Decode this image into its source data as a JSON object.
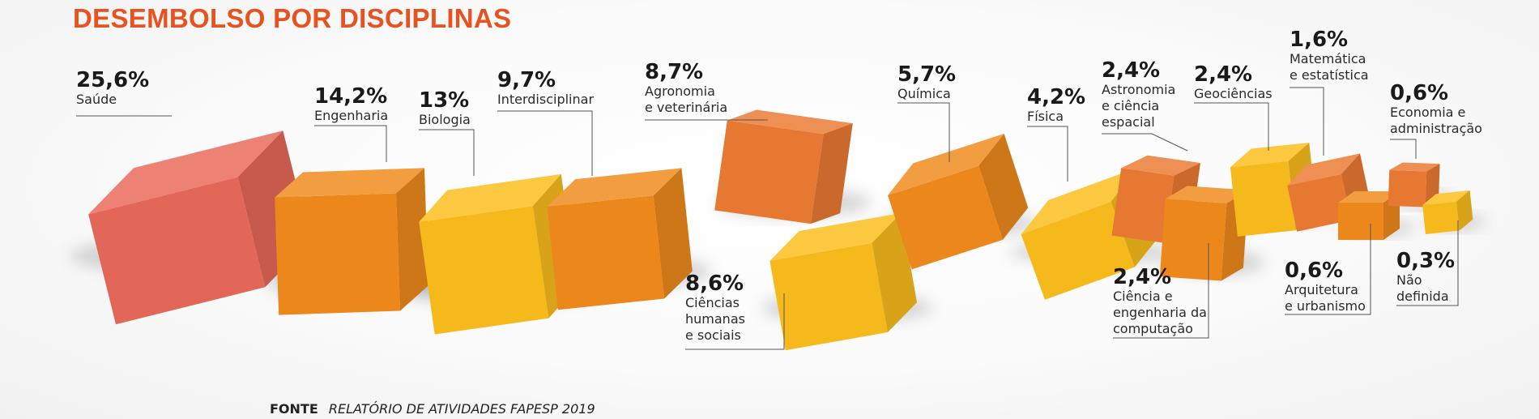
{
  "title": "DESEMBOLSO POR DISCIPLINAS",
  "source": {
    "label": "FONTE",
    "text": "RELATÓRIO DE ATIVIDADES FAPESP 2019"
  },
  "colors": {
    "red": "#e8695a",
    "orange": "#f08a1c",
    "yellow": "#fbbd1c",
    "dark_orange": "#eb7a32"
  },
  "chart_data": {
    "type": "bar",
    "title": "DESEMBOLSO POR DISCIPLINAS",
    "unit": "%",
    "categories": [
      "Saúde",
      "Engenharia",
      "Biologia",
      "Interdisciplinar",
      "Agronomia e veterinária",
      "Ciências humanas e sociais",
      "Química",
      "Física",
      "Astronomia e ciência espacial",
      "Ciência e engenharia da computação",
      "Geociências",
      "Matemática e estatística",
      "Arquitetura e urbanismo",
      "Economia e administração",
      "Não definida"
    ],
    "values": [
      25.6,
      14.2,
      13,
      9.7,
      8.7,
      8.6,
      5.7,
      4.2,
      2.4,
      2.4,
      2.4,
      1.6,
      0.6,
      0.6,
      0.3
    ],
    "items": [
      {
        "name": "Saúde",
        "value": 25.6,
        "pct_label": "25,6%",
        "label_lines": [
          "Saúde"
        ],
        "color": "red"
      },
      {
        "name": "Engenharia",
        "value": 14.2,
        "pct_label": "14,2%",
        "label_lines": [
          "Engenharia"
        ],
        "color": "orange"
      },
      {
        "name": "Biologia",
        "value": 13,
        "pct_label": "13%",
        "label_lines": [
          "Biologia"
        ],
        "color": "yellow"
      },
      {
        "name": "Interdisciplinar",
        "value": 9.7,
        "pct_label": "9,7%",
        "label_lines": [
          "Interdisciplinar"
        ],
        "color": "orange"
      },
      {
        "name": "Agronomia e veterinária",
        "value": 8.7,
        "pct_label": "8,7%",
        "label_lines": [
          "Agronomia",
          "e veterinária"
        ],
        "color": "dark_orange"
      },
      {
        "name": "Ciências humanas e sociais",
        "value": 8.6,
        "pct_label": "8,6%",
        "label_lines": [
          "Ciências",
          "humanas",
          "e sociais"
        ],
        "color": "yellow"
      },
      {
        "name": "Química",
        "value": 5.7,
        "pct_label": "5,7%",
        "label_lines": [
          "Química"
        ],
        "color": "orange"
      },
      {
        "name": "Física",
        "value": 4.2,
        "pct_label": "4,2%",
        "label_lines": [
          "Física"
        ],
        "color": "yellow"
      },
      {
        "name": "Astronomia e ciência espacial",
        "value": 2.4,
        "pct_label": "2,4%",
        "label_lines": [
          "Astronomia",
          "e ciência",
          "espacial"
        ],
        "color": "dark_orange"
      },
      {
        "name": "Ciência e engenharia da computação",
        "value": 2.4,
        "pct_label": "2,4%",
        "label_lines": [
          "Ciência e",
          "engenharia da",
          "computação"
        ],
        "color": "orange"
      },
      {
        "name": "Geociências",
        "value": 2.4,
        "pct_label": "2,4%",
        "label_lines": [
          "Geociências"
        ],
        "color": "yellow"
      },
      {
        "name": "Matemática e estatística",
        "value": 1.6,
        "pct_label": "1,6%",
        "label_lines": [
          "Matemática",
          "e estatística"
        ],
        "color": "dark_orange"
      },
      {
        "name": "Arquitetura e urbanismo",
        "value": 0.6,
        "pct_label": "0,6%",
        "label_lines": [
          "Arquitetura",
          "e urbanismo"
        ],
        "color": "orange"
      },
      {
        "name": "Economia e administração",
        "value": 0.6,
        "pct_label": "0,6%",
        "label_lines": [
          "Economia e",
          "administração"
        ],
        "color": "dark_orange"
      },
      {
        "name": "Não definida",
        "value": 0.3,
        "pct_label": "0,3%",
        "label_lines": [
          "Não",
          "definida"
        ],
        "color": "yellow"
      }
    ]
  }
}
